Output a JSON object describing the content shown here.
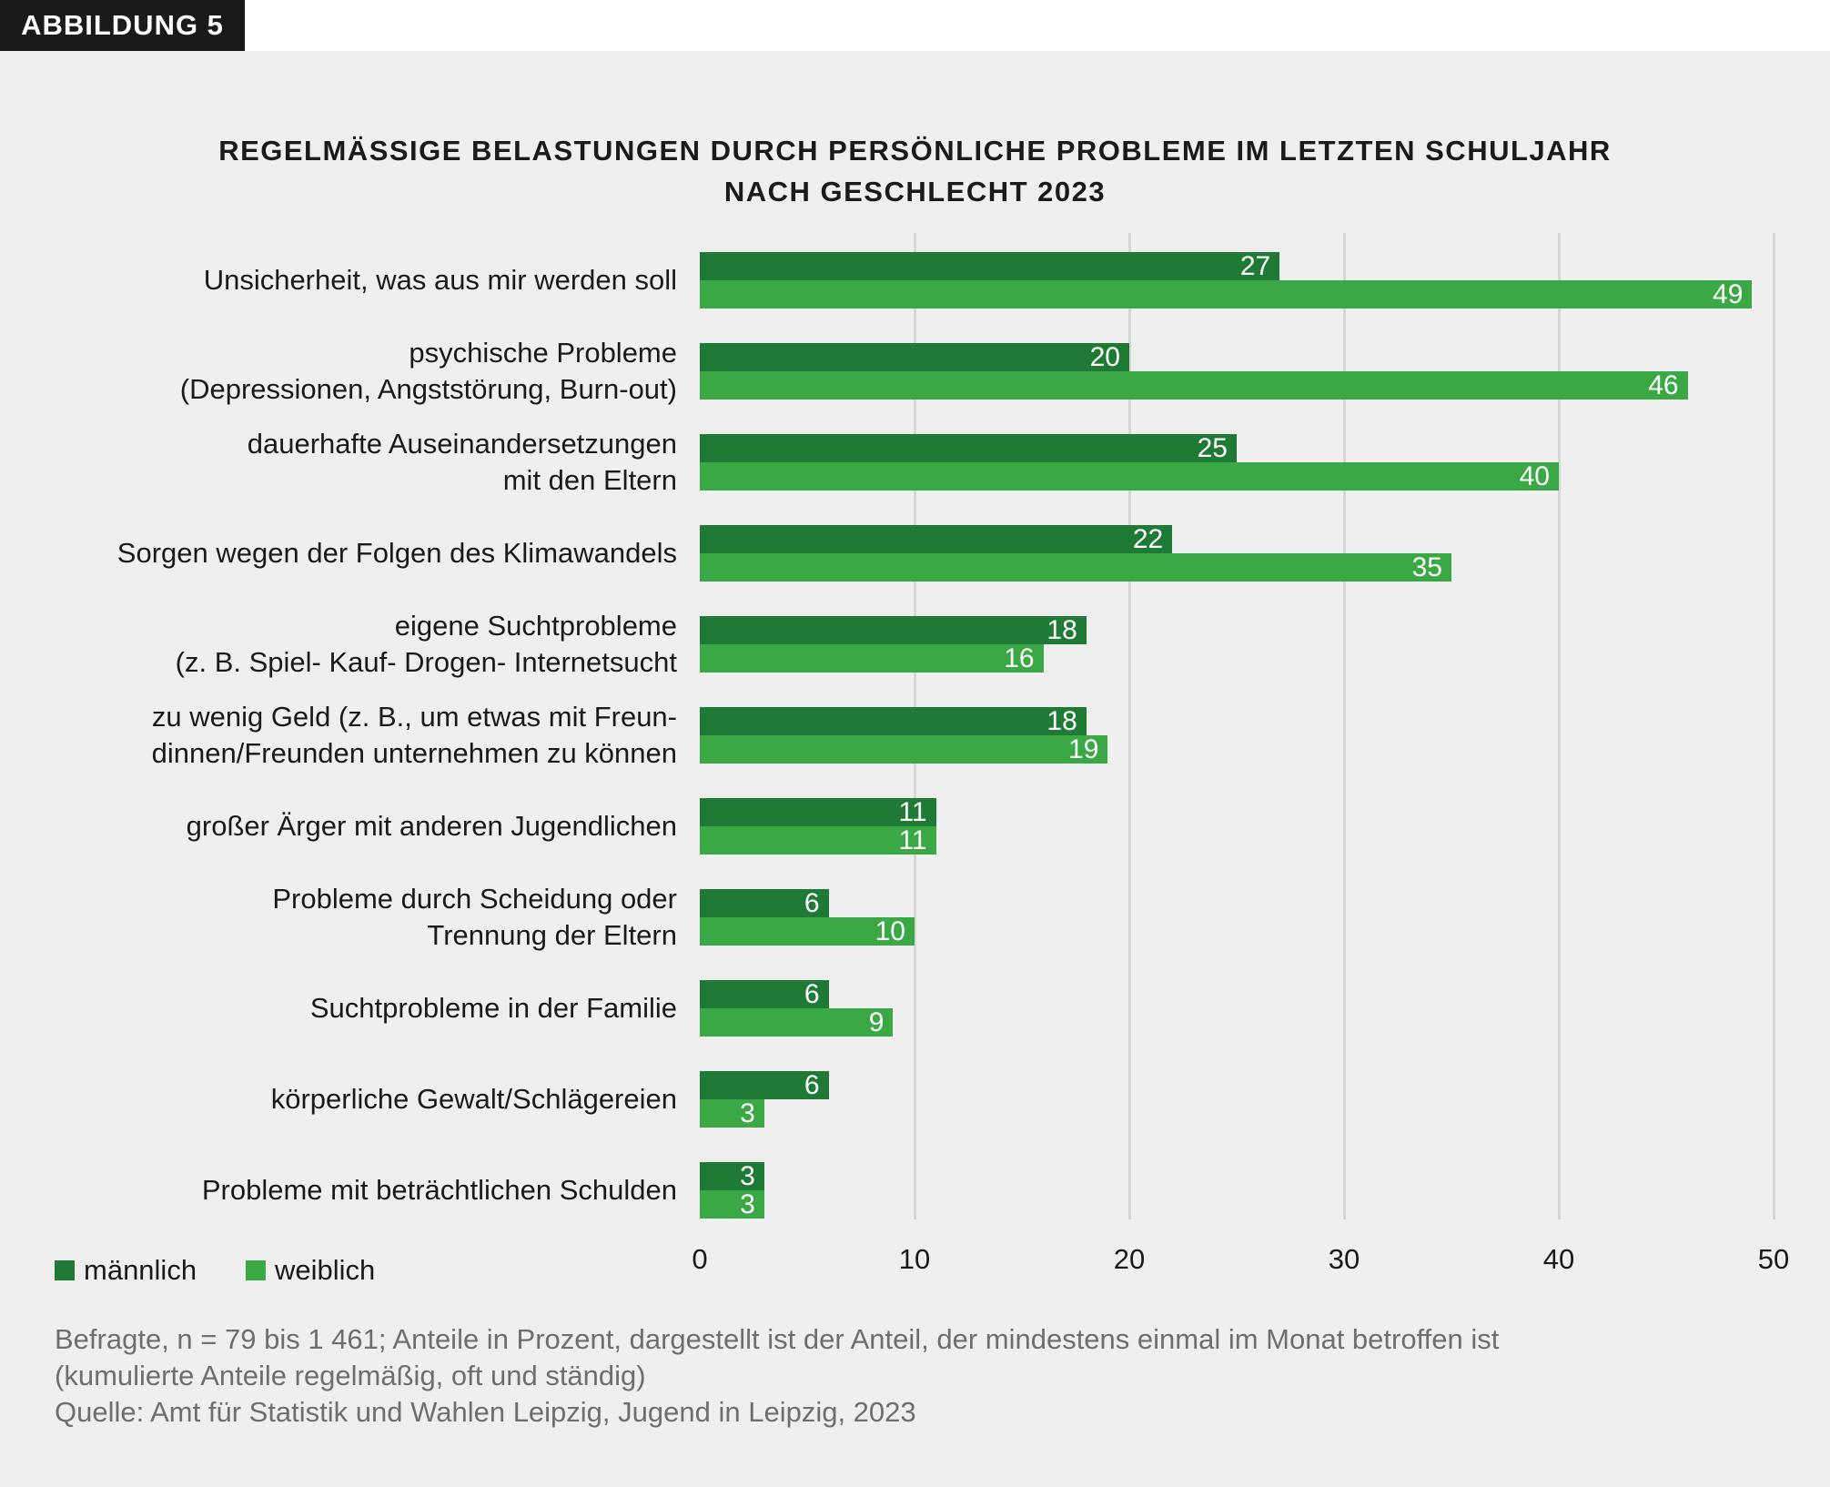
{
  "badge": "ABBILDUNG 5",
  "chart_data": {
    "type": "bar",
    "orientation": "horizontal",
    "title": [
      "REGELMÄSSIGE BELASTUNGEN DURCH PERSÖNLICHE PROBLEME IM LETZTEN SCHULJAHR",
      "NACH GESCHLECHT 2023"
    ],
    "categories": [
      [
        "Unsicherheit, was aus mir werden soll"
      ],
      [
        "psychische Probleme",
        "(Depressionen, Angststörung, Burn-out)"
      ],
      [
        "dauerhafte Auseinandersetzungen",
        "mit den Eltern"
      ],
      [
        "Sorgen wegen der Folgen des Klimawandels"
      ],
      [
        "eigene Suchtprobleme",
        "(z. B. Spiel- Kauf- Drogen- Internetsucht"
      ],
      [
        "zu wenig Geld (z. B., um etwas mit Freun-",
        "dinnen/Freunden unternehmen zu können"
      ],
      [
        "großer Ärger mit anderen Jugendlichen"
      ],
      [
        "Probleme durch Scheidung oder",
        "Trennung der Eltern"
      ],
      [
        "Suchtprobleme in der Familie"
      ],
      [
        "körperliche Gewalt/Schlägereien"
      ],
      [
        "Probleme mit beträchtlichen Schulden"
      ]
    ],
    "series": [
      {
        "name": "männlich",
        "color": "#1f7a35",
        "values": [
          27,
          20,
          25,
          22,
          18,
          18,
          11,
          6,
          6,
          6,
          3
        ]
      },
      {
        "name": "weiblich",
        "color": "#3aa845",
        "values": [
          49,
          46,
          40,
          35,
          16,
          19,
          11,
          10,
          9,
          3,
          3
        ]
      }
    ],
    "xlim": [
      0,
      50
    ],
    "xticks": [
      "0",
      "10",
      "20",
      "30",
      "40",
      "50"
    ],
    "grid": true,
    "legend": "bottom-left"
  },
  "footnote": [
    "Befragte, n = 79 bis 1 461; Anteile in Prozent, dargestellt ist der Anteil, der mindestens einmal im Monat betroffen ist",
    "(kumulierte Anteile regelmäßig, oft und ständig)",
    "Quelle: Amt für Statistik und Wahlen Leipzig, Jugend in Leipzig, 2023"
  ]
}
